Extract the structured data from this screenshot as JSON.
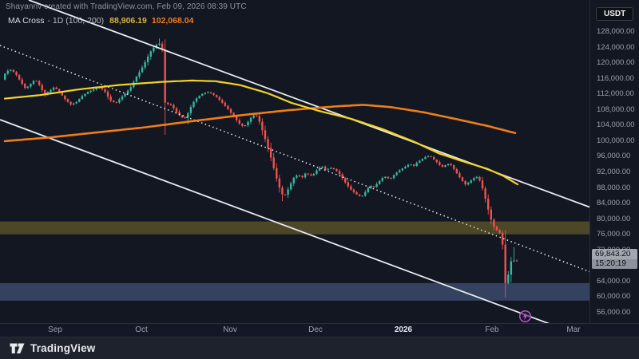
{
  "watermark": "Shayannv created with TradingView.com, Feb 09, 2026 08:39 UTC",
  "legend": {
    "title": "MA Cross",
    "meta": "- 1D (100, 200)",
    "ma_fast_value": "88,906.19",
    "ma_slow_value": "102,068.04",
    "ma_fast_color": "#d9b33c",
    "ma_slow_color": "#ef7d21"
  },
  "currency_button": {
    "label": "USDT"
  },
  "price_label": {
    "value": "69,843.20",
    "countdown": "15:20:19"
  },
  "toolbar": {
    "brand": "TradingView"
  },
  "colors": {
    "bg": "#131722",
    "up": "#34b8a1",
    "down": "#ef5350",
    "ma_fast": "#f2d428",
    "ma_slow": "#ef7d1a",
    "trendline": "#e8eaee",
    "zone_olive": "#a8972f",
    "zone_blue": "#6078aa",
    "bolt_accent": "#bb4fd0"
  },
  "chart_data": {
    "type": "candlestick",
    "interval": "1D",
    "currency": "USDT",
    "last_price": 69843.2,
    "countdown": "15:20:19",
    "indicators": [
      {
        "name": "MA 100",
        "value": 88906.19
      },
      {
        "name": "MA 200",
        "value": 102068.04
      }
    ],
    "scale": {
      "p_top": 128000,
      "y_top": 40,
      "p_bot": 56000,
      "y_bot": 392
    },
    "y_ticks": [
      128000,
      124000,
      120000,
      116000,
      112000,
      108000,
      104000,
      100000,
      96000,
      92000,
      88000,
      84000,
      80000,
      76000,
      72000,
      64000,
      60000,
      56000
    ],
    "x_months": [
      {
        "label": "Sep",
        "x": 69
      },
      {
        "label": "Oct",
        "x": 177
      },
      {
        "label": "Nov",
        "x": 288
      },
      {
        "label": "Dec",
        "x": 395
      },
      {
        "label": "2026",
        "x": 505,
        "bold": true
      },
      {
        "label": "Feb",
        "x": 616
      },
      {
        "label": "Mar",
        "x": 718
      }
    ],
    "zones": [
      {
        "name": "resistance-zone",
        "from": 76100,
        "to": 79400,
        "color": "#a8972f",
        "opacity": 0.38
      },
      {
        "name": "support-zone",
        "from": 59100,
        "to": 63600,
        "color": "#6078aa",
        "opacity": 0.45
      }
    ],
    "trendlines": [
      {
        "name": "channel-top",
        "x1": 36,
        "y1": 0,
        "x2": 742,
        "y2": 261,
        "style": "solid"
      },
      {
        "name": "channel-middle",
        "x1": 0,
        "y1": 57,
        "x2": 742,
        "y2": 342,
        "style": "dotted"
      },
      {
        "name": "channel-bottom",
        "x1": 0,
        "y1": 150,
        "x2": 742,
        "y2": 426,
        "style": "solid"
      }
    ],
    "candle_step": 3.58,
    "candle_body_halfwidth": 1.2,
    "close_anchors": [
      [
        2,
        115800
      ],
      [
        8,
        117900
      ],
      [
        14,
        118300
      ],
      [
        20,
        117100
      ],
      [
        26,
        115200
      ],
      [
        32,
        113400
      ],
      [
        38,
        114600
      ],
      [
        44,
        115900
      ],
      [
        50,
        114100
      ],
      [
        56,
        111900
      ],
      [
        62,
        112900
      ],
      [
        68,
        113900
      ],
      [
        75,
        112400
      ],
      [
        82,
        110600
      ],
      [
        89,
        109300
      ],
      [
        96,
        110100
      ],
      [
        103,
        111600
      ],
      [
        110,
        112600
      ],
      [
        117,
        113200
      ],
      [
        124,
        113900
      ],
      [
        131,
        112800
      ],
      [
        138,
        110400
      ],
      [
        145,
        109700
      ],
      [
        152,
        111300
      ],
      [
        158,
        112400
      ],
      [
        164,
        113900
      ],
      [
        170,
        116300
      ],
      [
        176,
        118100
      ],
      [
        182,
        120400
      ],
      [
        188,
        122800
      ],
      [
        194,
        124400
      ],
      [
        199,
        125200
      ],
      [
        203,
        123500
      ],
      [
        205,
        121800
      ],
      [
        207,
        107600
      ],
      [
        211,
        109900
      ],
      [
        216,
        108800
      ],
      [
        221,
        107500
      ],
      [
        226,
        106300
      ],
      [
        231,
        105800
      ],
      [
        236,
        107400
      ],
      [
        241,
        109700
      ],
      [
        247,
        111200
      ],
      [
        253,
        112100
      ],
      [
        259,
        112600
      ],
      [
        265,
        112200
      ],
      [
        271,
        111300
      ],
      [
        278,
        109900
      ],
      [
        285,
        108300
      ],
      [
        292,
        106500
      ],
      [
        299,
        104600
      ],
      [
        305,
        103600
      ],
      [
        310,
        104800
      ],
      [
        315,
        106200
      ],
      [
        320,
        106900
      ],
      [
        325,
        104900
      ],
      [
        330,
        101800
      ],
      [
        335,
        98600
      ],
      [
        340,
        95200
      ],
      [
        345,
        91300
      ],
      [
        350,
        88000
      ],
      [
        355,
        85600
      ],
      [
        359,
        86900
      ],
      [
        363,
        88700
      ],
      [
        368,
        90700
      ],
      [
        373,
        91400
      ],
      [
        378,
        90600
      ],
      [
        383,
        91900
      ],
      [
        388,
        91100
      ],
      [
        393,
        91600
      ],
      [
        398,
        92900
      ],
      [
        403,
        93600
      ],
      [
        408,
        92500
      ],
      [
        413,
        93200
      ],
      [
        418,
        92800
      ],
      [
        423,
        92100
      ],
      [
        428,
        90700
      ],
      [
        433,
        89200
      ],
      [
        438,
        87800
      ],
      [
        443,
        86900
      ],
      [
        448,
        86100
      ],
      [
        453,
        85800
      ],
      [
        458,
        87100
      ],
      [
        463,
        88600
      ],
      [
        468,
        88200
      ],
      [
        473,
        89300
      ],
      [
        478,
        90500
      ],
      [
        483,
        90900
      ],
      [
        488,
        90200
      ],
      [
        493,
        91300
      ],
      [
        498,
        92200
      ],
      [
        503,
        92900
      ],
      [
        508,
        93500
      ],
      [
        513,
        94200
      ],
      [
        518,
        93600
      ],
      [
        523,
        94700
      ],
      [
        528,
        95300
      ],
      [
        533,
        96000
      ],
      [
        538,
        96200
      ],
      [
        543,
        95300
      ],
      [
        548,
        94400
      ],
      [
        553,
        93300
      ],
      [
        558,
        93900
      ],
      [
        563,
        94300
      ],
      [
        568,
        92900
      ],
      [
        573,
        91400
      ],
      [
        578,
        90000
      ],
      [
        583,
        88800
      ],
      [
        588,
        89600
      ],
      [
        593,
        90500
      ],
      [
        598,
        90900
      ],
      [
        602,
        89300
      ],
      [
        606,
        86500
      ],
      [
        610,
        83400
      ],
      [
        614,
        80300
      ],
      [
        618,
        78100
      ],
      [
        622,
        77200
      ],
      [
        626,
        76400
      ],
      [
        629,
        73800
      ],
      [
        633,
        62800
      ],
      [
        637,
        66400
      ],
      [
        641,
        70300
      ],
      [
        645,
        68800
      ],
      [
        650,
        69843.2
      ]
    ],
    "wick_events": [
      {
        "x": 199,
        "high": 126300
      },
      {
        "x": 207,
        "low": 101600
      },
      {
        "x": 235,
        "low": 104300
      },
      {
        "x": 355,
        "low": 84600
      },
      {
        "x": 633,
        "low": 59900
      },
      {
        "x": 645,
        "high": 72800
      }
    ],
    "ma_fast_anchors": [
      [
        6,
        110900
      ],
      [
        50,
        111800
      ],
      [
        100,
        113300
      ],
      [
        150,
        114400
      ],
      [
        200,
        115150
      ],
      [
        240,
        115550
      ],
      [
        270,
        115350
      ],
      [
        300,
        114400
      ],
      [
        335,
        112300
      ],
      [
        365,
        109800
      ],
      [
        400,
        107700
      ],
      [
        440,
        105700
      ],
      [
        480,
        103000
      ],
      [
        520,
        99700
      ],
      [
        550,
        96800
      ],
      [
        580,
        94800
      ],
      [
        610,
        92900
      ],
      [
        630,
        91100
      ],
      [
        648,
        88906.19
      ]
    ],
    "ma_slow_anchors": [
      [
        6,
        100000
      ],
      [
        60,
        100900
      ],
      [
        120,
        102200
      ],
      [
        180,
        103500
      ],
      [
        240,
        105100
      ],
      [
        300,
        106600
      ],
      [
        360,
        107900
      ],
      [
        420,
        108900
      ],
      [
        455,
        109300
      ],
      [
        490,
        108700
      ],
      [
        530,
        107400
      ],
      [
        570,
        105700
      ],
      [
        610,
        103900
      ],
      [
        645,
        102068.04
      ]
    ]
  }
}
